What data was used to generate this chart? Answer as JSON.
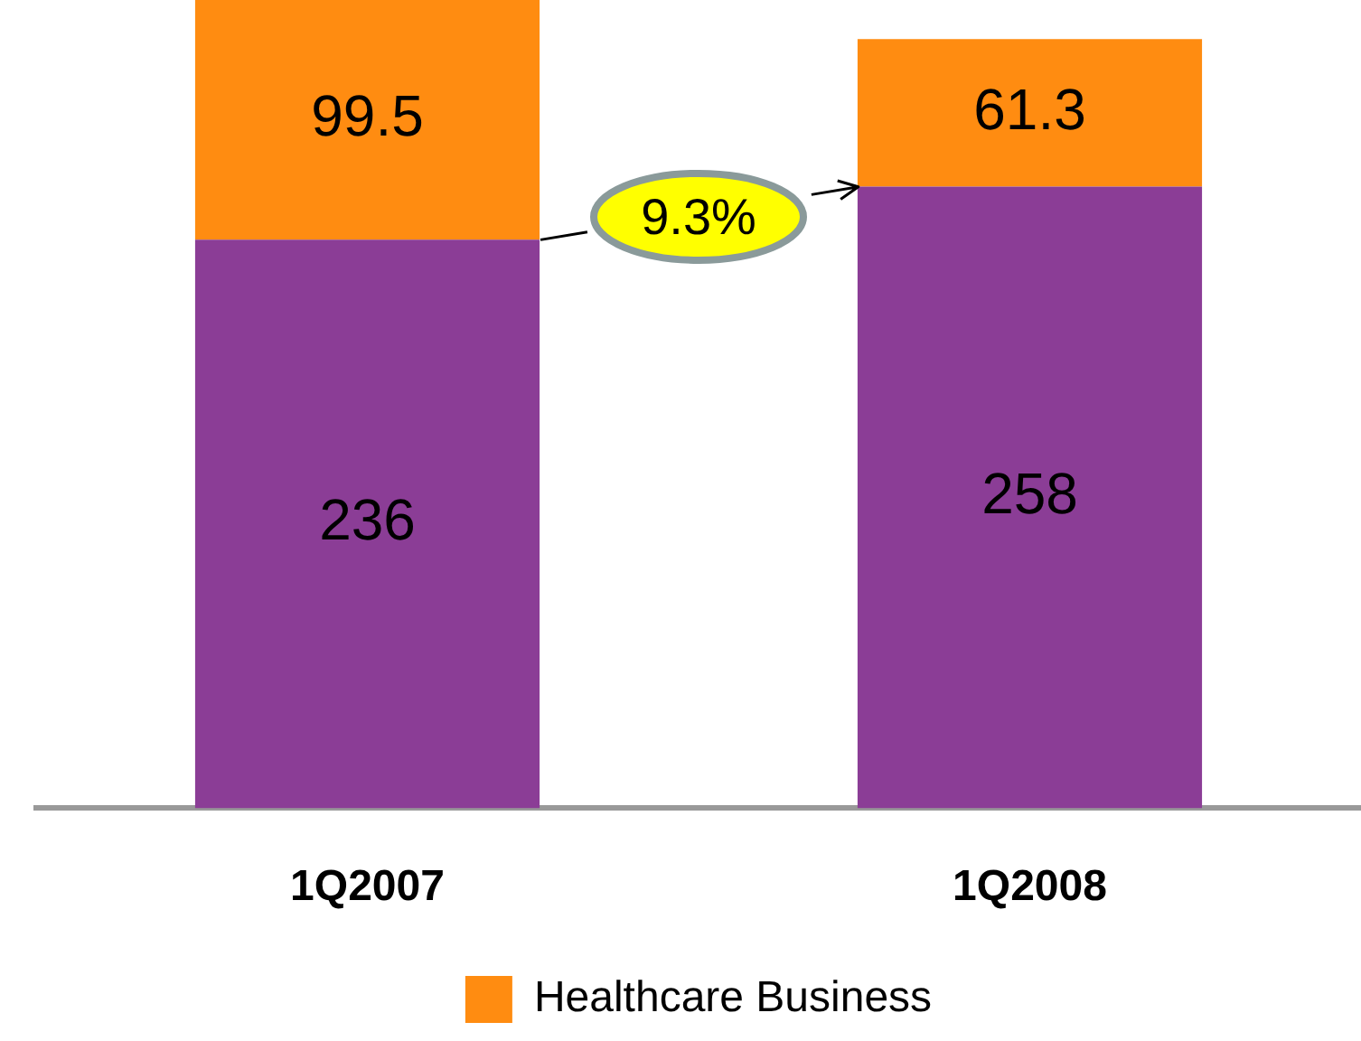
{
  "chart_data": {
    "type": "bar",
    "stacked": true,
    "categories": [
      "1Q2007",
      "1Q2008"
    ],
    "series": [
      {
        "color": "#8b3d96",
        "values": [
          236,
          258
        ]
      },
      {
        "name": "Healthcare Business",
        "color": "#ff8c11",
        "values": [
          99.5,
          61.3
        ]
      }
    ],
    "ylim": [
      0,
      335.5
    ],
    "data_labels": true,
    "legend": "bottom",
    "grid": false,
    "annotations": [
      "9.3%"
    ]
  }
}
